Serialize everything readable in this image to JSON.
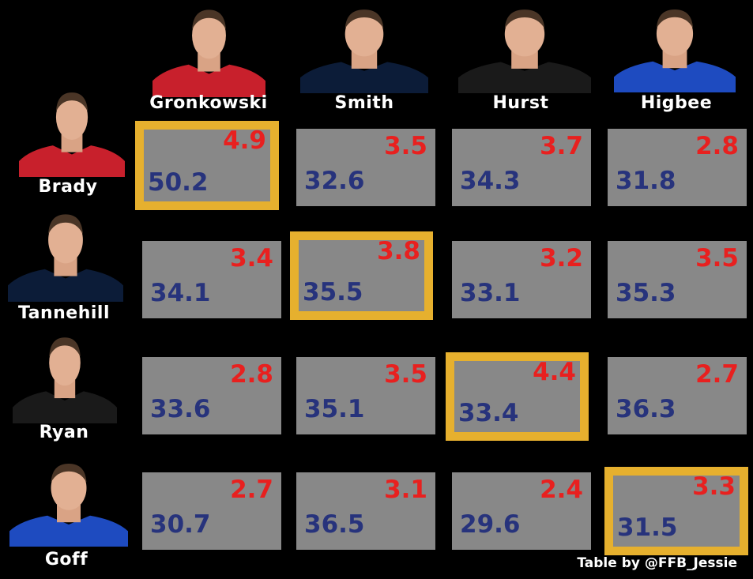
{
  "chart_data": {
    "type": "table",
    "columns": [
      {
        "name": "Gronkowski",
        "jersey_color": "#c8202c",
        "icon": "player-headshot"
      },
      {
        "name": "Smith",
        "jersey_color": "#0c1c38",
        "icon": "player-headshot"
      },
      {
        "name": "Hurst",
        "jersey_color": "#1a1a1a",
        "icon": "player-headshot"
      },
      {
        "name": "Higbee",
        "jersey_color": "#1e4bc0",
        "icon": "player-headshot"
      }
    ],
    "rows": [
      {
        "name": "Brady",
        "jersey_color": "#c8202c",
        "icon": "player-headshot"
      },
      {
        "name": "Tannehill",
        "jersey_color": "#0c1c38",
        "icon": "player-headshot"
      },
      {
        "name": "Ryan",
        "jersey_color": "#1a1a1a",
        "icon": "player-headshot"
      },
      {
        "name": "Goff",
        "jersey_color": "#1e4bc0",
        "icon": "player-headshot"
      }
    ],
    "cells": [
      [
        {
          "top": "4.9",
          "bottom": "50.2",
          "highlight": true
        },
        {
          "top": "3.5",
          "bottom": "32.6",
          "highlight": false
        },
        {
          "top": "3.7",
          "bottom": "34.3",
          "highlight": false
        },
        {
          "top": "2.8",
          "bottom": "31.8",
          "highlight": false
        }
      ],
      [
        {
          "top": "3.4",
          "bottom": "34.1",
          "highlight": false
        },
        {
          "top": "3.8",
          "bottom": "35.5",
          "highlight": true
        },
        {
          "top": "3.2",
          "bottom": "33.1",
          "highlight": false
        },
        {
          "top": "3.5",
          "bottom": "35.3",
          "highlight": false
        }
      ],
      [
        {
          "top": "2.8",
          "bottom": "33.6",
          "highlight": false
        },
        {
          "top": "3.5",
          "bottom": "35.1",
          "highlight": false
        },
        {
          "top": "4.4",
          "bottom": "33.4",
          "highlight": true
        },
        {
          "top": "2.7",
          "bottom": "36.3",
          "highlight": false
        }
      ],
      [
        {
          "top": "2.7",
          "bottom": "30.7",
          "highlight": false
        },
        {
          "top": "3.1",
          "bottom": "36.5",
          "highlight": false
        },
        {
          "top": "2.4",
          "bottom": "29.6",
          "highlight": false
        },
        {
          "top": "3.3",
          "bottom": "31.5",
          "highlight": true
        }
      ]
    ],
    "colors": {
      "background": "#000000",
      "cell": "#888888",
      "highlight_border": "#e6b02e",
      "top_value": "#e8201f",
      "bottom_value": "#27337c"
    }
  },
  "credit": "Table by @FFB_Jessie"
}
